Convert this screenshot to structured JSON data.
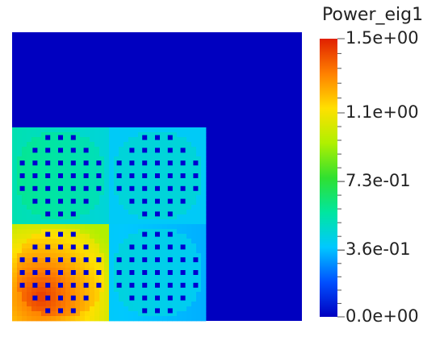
{
  "field_name": "Power_eig1",
  "colorbar": {
    "min": 0.0,
    "max": 1.5,
    "labels": [
      {
        "text": "1.5e+00",
        "value": 1.5
      },
      {
        "text": "1.1e+00",
        "value": 1.1
      },
      {
        "text": "7.3e-01",
        "value": 0.73
      },
      {
        "text": "3.6e-01",
        "value": 0.36
      },
      {
        "text": "0.0e+00",
        "value": 0.0
      }
    ],
    "minor_ticks_per_interval": 4,
    "colors": [
      "#0000c0",
      "#0050ff",
      "#00c8ff",
      "#00e6a0",
      "#30e030",
      "#b0f000",
      "#ffe000",
      "#ff8000",
      "#e02000"
    ]
  },
  "assemblies": [
    {
      "name": "assembly-top-left",
      "base_power": 0.55,
      "gradient": 0.08
    },
    {
      "name": "assembly-top-right",
      "base_power": 0.45,
      "gradient": 0.0
    },
    {
      "name": "assembly-bottom-left",
      "base_power": 1.05,
      "gradient": 0.35
    },
    {
      "name": "assembly-bottom-right",
      "base_power": 0.42,
      "gradient": 0.05
    }
  ],
  "reflector_power": 0.0
}
